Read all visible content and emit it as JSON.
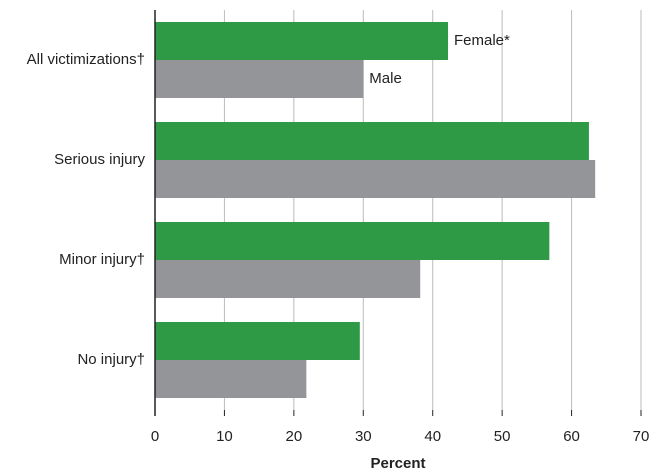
{
  "chart_data": {
    "type": "bar",
    "orientation": "horizontal",
    "categories": [
      "All victimizations†",
      "Serious injury",
      "Minor injury†",
      "No injury†"
    ],
    "series": [
      {
        "name": "Female*",
        "color": "#2e9a45",
        "values": [
          42.2,
          62.5,
          56.8,
          29.5
        ]
      },
      {
        "name": "Male",
        "color": "#939598",
        "values": [
          30,
          63.4,
          38.2,
          21.8
        ]
      }
    ],
    "xlabel": "Percent",
    "xlim": [
      0,
      70
    ],
    "xticks": [
      0,
      10,
      20,
      30,
      40,
      50,
      60,
      70
    ],
    "grid": true
  }
}
